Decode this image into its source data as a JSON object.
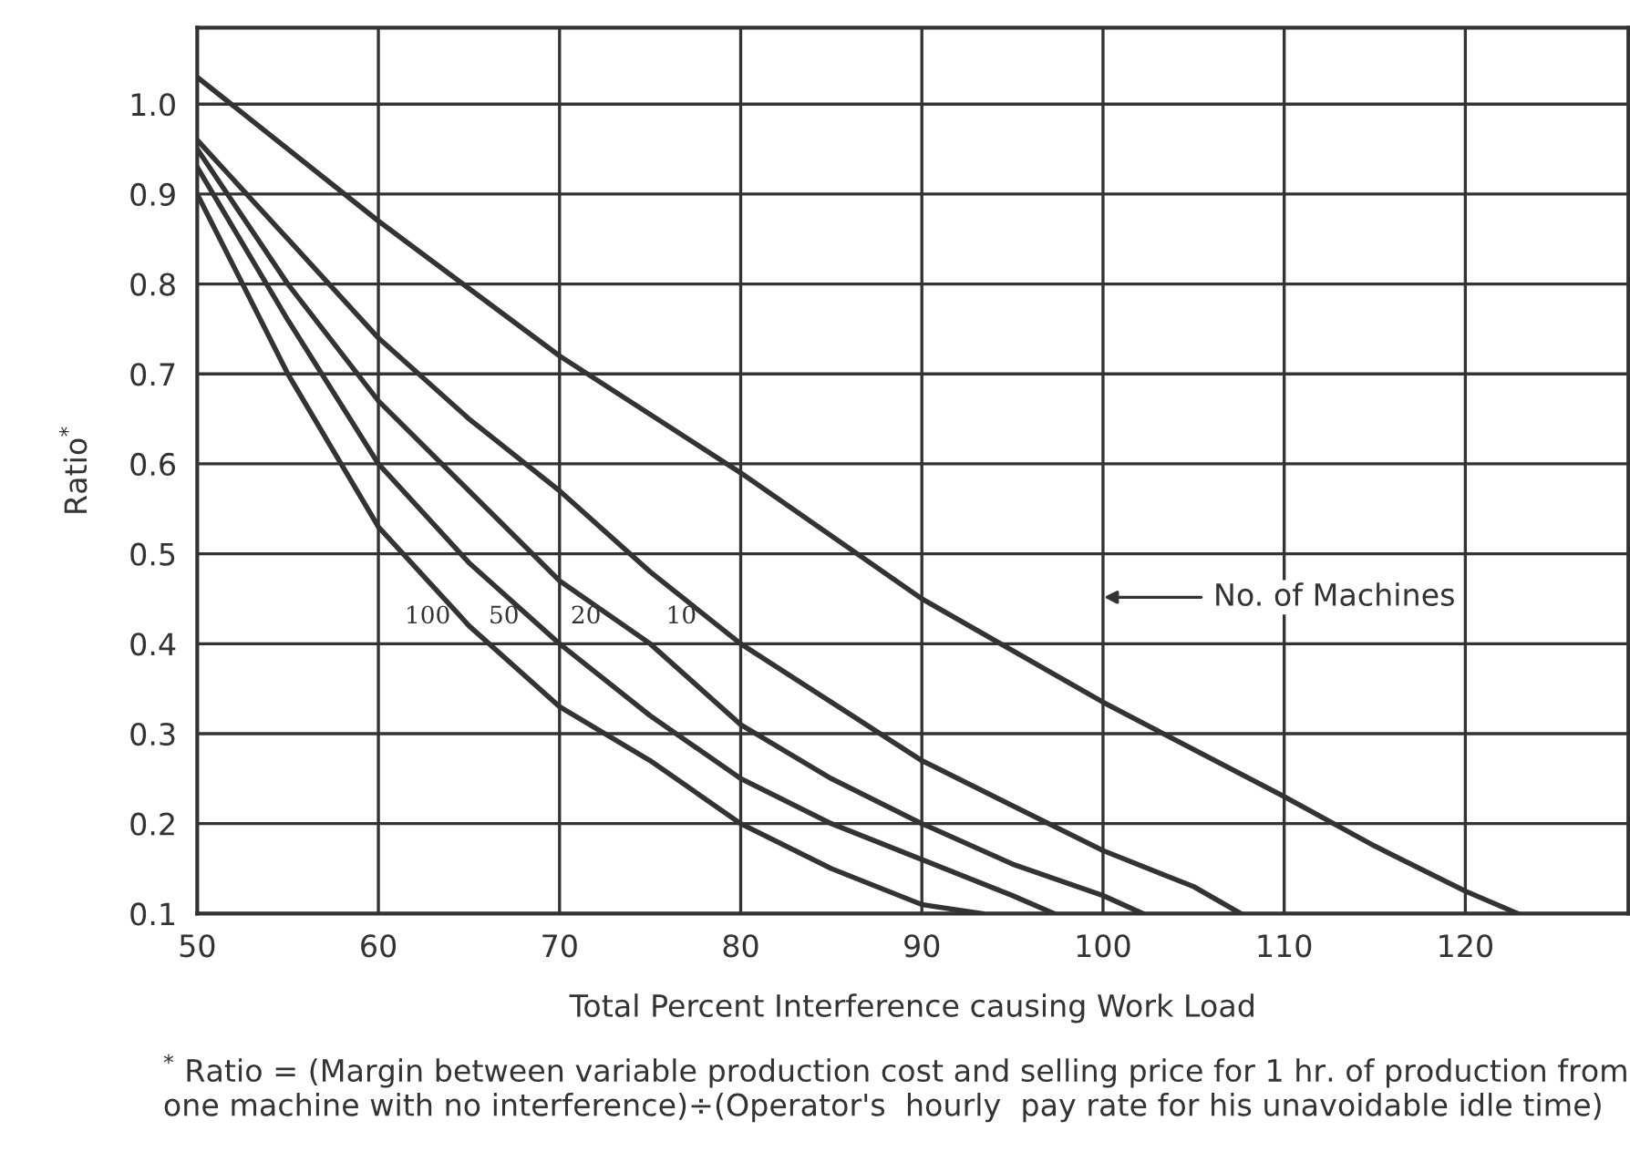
{
  "chart_data": {
    "type": "line",
    "xlabel": "Total Percent Interference causing Work Load",
    "ylabel": "Ratio$^{*}$",
    "xlim": [
      50,
      129
    ],
    "ylim": [
      0.1,
      1.085
    ],
    "xticks": [
      50,
      60,
      70,
      80,
      90,
      100,
      110,
      120
    ],
    "yticks": [
      {
        "value": 0.1,
        "label": "0.1"
      },
      {
        "value": 0.2,
        "label": "0.2"
      },
      {
        "value": 0.3,
        "label": "0.3"
      },
      {
        "value": 0.4,
        "label": "0.4"
      },
      {
        "value": 0.5,
        "label": "0.5"
      },
      {
        "value": 0.6,
        "label": "0.6"
      },
      {
        "value": 0.7,
        "label": "0.7"
      },
      {
        "value": 0.8,
        "label": "0.8"
      },
      {
        "value": 0.9,
        "label": "0.9"
      },
      {
        "value": 1.0,
        "label": "1.0"
      }
    ],
    "grid": true,
    "legend": false,
    "marker": "none",
    "line_style": "solid",
    "series": [
      {
        "name": "100",
        "color": "#333333",
        "x": [
          50,
          55,
          60,
          65,
          70,
          75,
          80,
          85,
          90,
          93.3
        ],
        "values": [
          0.9,
          0.7,
          0.53,
          0.42,
          0.33,
          0.27,
          0.2,
          0.15,
          0.11,
          0.1
        ]
      },
      {
        "name": "50",
        "color": "#333333",
        "x": [
          50,
          55,
          60,
          65,
          70,
          75,
          80,
          85,
          90,
          95,
          97.3
        ],
        "values": [
          0.93,
          0.76,
          0.6,
          0.49,
          0.4,
          0.32,
          0.25,
          0.2,
          0.16,
          0.12,
          0.1
        ]
      },
      {
        "name": "20",
        "color": "#333333",
        "x": [
          50,
          55,
          60,
          65,
          70,
          75,
          80,
          85,
          90,
          95,
          100,
          102.2
        ],
        "values": [
          0.95,
          0.8,
          0.67,
          0.57,
          0.47,
          0.4,
          0.31,
          0.25,
          0.2,
          0.155,
          0.12,
          0.1
        ]
      },
      {
        "name": "10",
        "color": "#333333",
        "x": [
          50,
          55,
          60,
          65,
          70,
          75,
          80,
          85,
          90,
          95,
          100,
          105,
          107.6
        ],
        "values": [
          0.96,
          0.85,
          0.74,
          0.65,
          0.57,
          0.48,
          0.4,
          0.335,
          0.27,
          0.22,
          0.17,
          0.13,
          0.1
        ]
      },
      {
        "color": "#333333",
        "x": [
          50,
          60,
          70,
          80,
          90,
          100,
          110,
          115,
          120,
          122.9
        ],
        "values": [
          1.03,
          0.87,
          0.72,
          0.59,
          0.45,
          0.335,
          0.23,
          0.175,
          0.125,
          0.1
        ]
      }
    ],
    "annotations": [
      "No. of Machines",
      "$^{*}$ Ratio = (Margin between variable production cost and selling price for 1 hr. of production from one machine with no interference)÷(Operator's  hourly  pay rate for his unavoidable idle time)"
    ]
  }
}
